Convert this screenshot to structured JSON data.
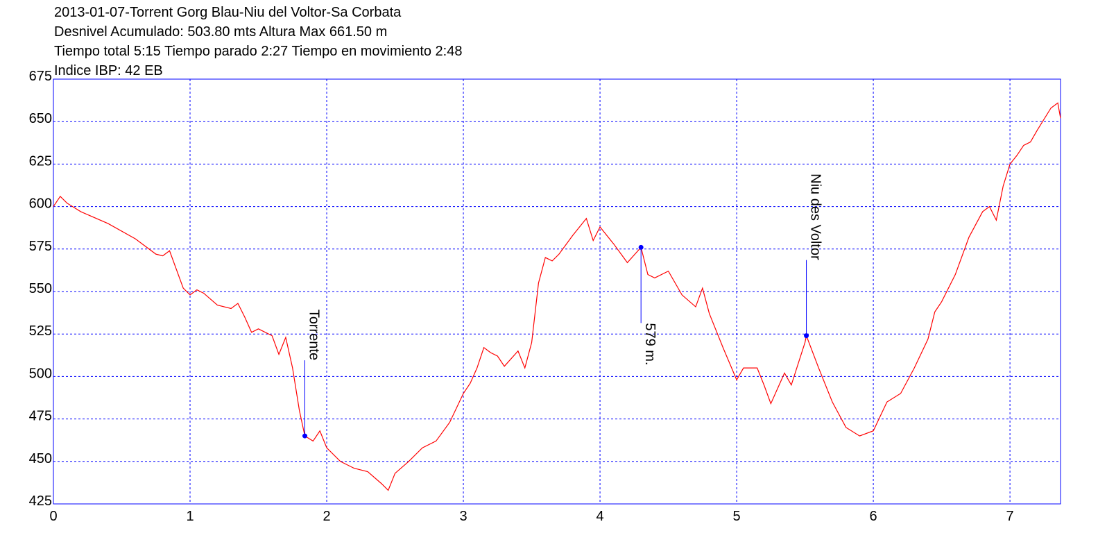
{
  "chart_data": {
    "type": "line",
    "title_lines": [
      "2013-01-07-Torrent Gorg Blau-Niu del Voltor-Sa Corbata",
      "Desnivel Acumulado: 503.80 mts  Altura Max 661.50 m",
      "Tiempo total 5:15 Tiempo parado 2:27 Tiempo en movimiento 2:48",
      "Indice IBP: 42 EB"
    ],
    "x": [
      0,
      0.05,
      0.1,
      0.2,
      0.4,
      0.6,
      0.75,
      0.8,
      0.85,
      0.9,
      0.95,
      1.0,
      1.05,
      1.1,
      1.2,
      1.3,
      1.35,
      1.4,
      1.45,
      1.5,
      1.6,
      1.65,
      1.7,
      1.75,
      1.8,
      1.84,
      1.9,
      1.95,
      2.0,
      2.1,
      2.2,
      2.3,
      2.4,
      2.45,
      2.5,
      2.6,
      2.7,
      2.8,
      2.9,
      3.0,
      3.05,
      3.1,
      3.15,
      3.2,
      3.25,
      3.3,
      3.4,
      3.45,
      3.5,
      3.55,
      3.6,
      3.65,
      3.7,
      3.8,
      3.9,
      3.95,
      4.0,
      4.1,
      4.2,
      4.3,
      4.35,
      4.4,
      4.5,
      4.6,
      4.7,
      4.75,
      4.8,
      4.85,
      4.9,
      5.0,
      5.05,
      5.15,
      5.2,
      5.25,
      5.3,
      5.35,
      5.4,
      5.5,
      5.51,
      5.6,
      5.7,
      5.8,
      5.9,
      6.0,
      6.1,
      6.2,
      6.3,
      6.4,
      6.45,
      6.5,
      6.6,
      6.7,
      6.8,
      6.85,
      6.9,
      6.95,
      7.0,
      7.05,
      7.1,
      7.15,
      7.2,
      7.3,
      7.35,
      7.37
    ],
    "values": [
      600,
      606,
      602,
      597,
      590,
      581,
      572,
      571,
      574,
      563,
      552,
      548,
      551,
      549,
      542,
      540,
      543,
      535,
      526,
      528,
      524,
      513,
      523,
      505,
      480,
      465,
      462,
      468,
      458,
      450,
      446,
      444,
      437,
      433,
      443,
      450,
      458,
      462,
      473,
      490,
      496,
      505,
      517,
      514,
      512,
      506,
      515,
      505,
      520,
      555,
      570,
      568,
      572,
      583,
      593,
      580,
      588,
      578,
      567,
      576,
      560,
      558,
      562,
      548,
      541,
      552,
      537,
      527,
      517,
      498,
      505,
      505,
      495,
      484,
      493,
      502,
      495,
      520,
      524,
      505,
      485,
      470,
      465,
      468,
      485,
      490,
      505,
      522,
      538,
      544,
      560,
      582,
      597,
      600,
      592,
      612,
      625,
      630,
      636,
      638,
      645,
      658,
      661,
      652
    ],
    "color": "#ff0000",
    "xlim": [
      0,
      7.37
    ],
    "xticks": [
      0,
      1,
      2,
      3,
      4,
      5,
      6,
      7
    ],
    "ylim": [
      425,
      675
    ],
    "yticks": [
      425,
      450,
      475,
      500,
      525,
      550,
      575,
      600,
      625,
      650,
      675
    ],
    "grid": true,
    "grid_color": "#0000ff",
    "annotations": [
      {
        "label": "Torrente",
        "x": 1.84,
        "y": 465
      },
      {
        "label": "579 m.",
        "x": 4.3,
        "y": 576
      },
      {
        "label": "Niu des Voltor",
        "x": 5.51,
        "y": 524
      }
    ]
  }
}
